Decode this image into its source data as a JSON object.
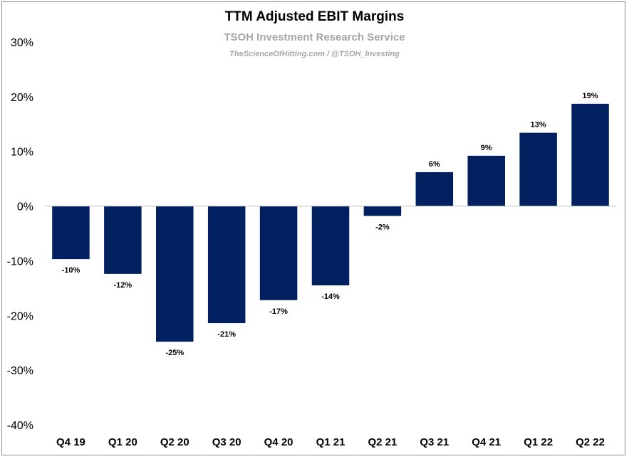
{
  "chart_data": {
    "type": "bar",
    "title": "TTM Adjusted EBIT Margins",
    "subtitle": "TSOH Investment Research Service",
    "credit": "TheScienceOfHitting.com / @TSOH_Investing",
    "categories": [
      "Q4 19",
      "Q1 20",
      "Q2 20",
      "Q3 20",
      "Q4 20",
      "Q1 21",
      "Q2 21",
      "Q3 21",
      "Q4 21",
      "Q1 22",
      "Q2 22"
    ],
    "values": [
      -9.7,
      -12.4,
      -24.8,
      -21.4,
      -17.2,
      -14.5,
      -1.8,
      6.2,
      9.2,
      13.4,
      18.7
    ],
    "data_labels": [
      "-10%",
      "-12%",
      "-25%",
      "-21%",
      "-17%",
      "-14%",
      "-2%",
      "6%",
      "9%",
      "13%",
      "19%"
    ],
    "ylim": [
      -40,
      30
    ],
    "yticks": [
      30,
      20,
      10,
      0,
      -10,
      -20,
      -30,
      -40
    ],
    "ytick_labels": [
      "30%",
      "20%",
      "10%",
      "0%",
      "-10%",
      "-20%",
      "-30%",
      "-40%"
    ],
    "bar_color": "#002060",
    "zero_line_color": "#bfbfbf",
    "grid": false,
    "legend": "none"
  }
}
